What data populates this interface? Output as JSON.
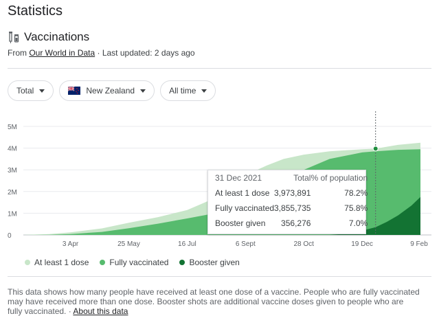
{
  "header": {
    "title": "Statistics"
  },
  "section": {
    "label": "Vaccinations",
    "icon": "syringe-icon"
  },
  "source": {
    "prefix": "From",
    "link_text": "Our World in Data",
    "updated": "· Last updated: 2 days ago"
  },
  "filters": {
    "metric": "Total",
    "country": "New Zealand",
    "range": "All time"
  },
  "colors": {
    "at_least_1": "#c8e6c9",
    "fully": "#57bb6e",
    "booster": "#137333",
    "grid": "#e8eaed",
    "cursor": "#5f6368"
  },
  "chart_data": {
    "type": "area",
    "y_ticks": [
      "0",
      "1M",
      "2M",
      "3M",
      "4M",
      "5M"
    ],
    "x_ticks": [
      "3 Apr",
      "25 May",
      "16 Jul",
      "6 Sept",
      "28 Oct",
      "19 Dec",
      "9 Feb"
    ],
    "ylim": [
      0,
      5000000
    ],
    "series": [
      {
        "name": "At least 1 dose",
        "points": [
          [
            "2021-02-20",
            0
          ],
          [
            "2021-03-15",
            40000
          ],
          [
            "2021-04-03",
            120000
          ],
          [
            "2021-05-01",
            300000
          ],
          [
            "2021-05-25",
            560000
          ],
          [
            "2021-06-20",
            820000
          ],
          [
            "2021-07-16",
            1150000
          ],
          [
            "2021-08-10",
            1700000
          ],
          [
            "2021-08-25",
            2200000
          ],
          [
            "2021-09-06",
            2750000
          ],
          [
            "2021-09-25",
            3200000
          ],
          [
            "2021-10-10",
            3500000
          ],
          [
            "2021-10-28",
            3700000
          ],
          [
            "2021-11-20",
            3850000
          ],
          [
            "2021-12-19",
            3950000
          ],
          [
            "2021-12-31",
            3973891
          ],
          [
            "2022-01-20",
            4150000
          ],
          [
            "2022-02-09",
            4250000
          ]
        ]
      },
      {
        "name": "Fully vaccinated",
        "points": [
          [
            "2021-02-20",
            0
          ],
          [
            "2021-03-15",
            5000
          ],
          [
            "2021-04-03",
            40000
          ],
          [
            "2021-05-01",
            140000
          ],
          [
            "2021-05-25",
            310000
          ],
          [
            "2021-06-20",
            520000
          ],
          [
            "2021-07-16",
            760000
          ],
          [
            "2021-08-10",
            1000000
          ],
          [
            "2021-08-25",
            1250000
          ],
          [
            "2021-09-06",
            1450000
          ],
          [
            "2021-09-25",
            1900000
          ],
          [
            "2021-10-10",
            2400000
          ],
          [
            "2021-10-28",
            3000000
          ],
          [
            "2021-11-20",
            3500000
          ],
          [
            "2021-12-19",
            3800000
          ],
          [
            "2021-12-31",
            3855735
          ],
          [
            "2022-01-20",
            3920000
          ],
          [
            "2022-02-09",
            3950000
          ]
        ]
      },
      {
        "name": "Booster given",
        "points": [
          [
            "2021-02-20",
            0
          ],
          [
            "2021-11-20",
            0
          ],
          [
            "2021-12-05",
            60000
          ],
          [
            "2021-12-19",
            200000
          ],
          [
            "2021-12-31",
            356276
          ],
          [
            "2022-01-10",
            600000
          ],
          [
            "2022-01-20",
            900000
          ],
          [
            "2022-02-01",
            1350000
          ],
          [
            "2022-02-09",
            1750000
          ]
        ]
      }
    ],
    "cursor_date": "2021-12-31",
    "legend": [
      "At least 1 dose",
      "Fully vaccinated",
      "Booster given"
    ],
    "tooltip": {
      "date": "31 Dec 2021",
      "col_total": "Total",
      "col_pct": "% of population",
      "rows": [
        {
          "label": "At least 1 dose",
          "total": "3,973,891",
          "pct": "78.2%"
        },
        {
          "label": "Fully vaccinated",
          "total": "3,855,735",
          "pct": "75.8%"
        },
        {
          "label": "Booster given",
          "total": "356,276",
          "pct": "7.0%"
        }
      ]
    }
  },
  "footnote": {
    "text": "This data shows how many people have received at least one dose of a vaccine. People who are fully vaccinated may have received more than one dose. Booster shots are additional vaccine doses given to people who are fully vaccinated.",
    "separator": " · ",
    "link": "About this data"
  }
}
